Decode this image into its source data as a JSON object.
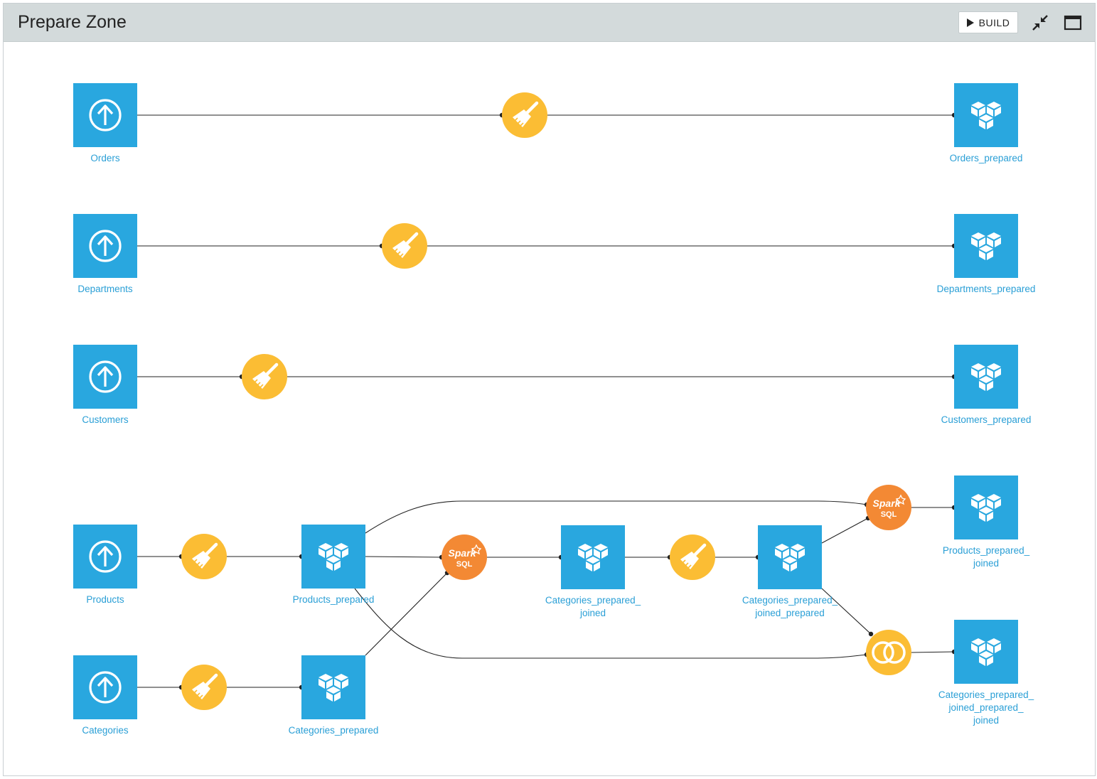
{
  "header": {
    "title": "Prepare Zone",
    "build_label": "BUILD",
    "icons": [
      "collapse-icon",
      "maximize-icon"
    ]
  },
  "colors": {
    "dataset": "#29a7df",
    "prepare_recipe": "#fbbd34",
    "spark_sql_recipe": "#f38934",
    "join_recipe": "#fbbd34",
    "edge": "#222222",
    "label": "#2a9fd6"
  },
  "nodes": [
    {
      "id": "orders",
      "type": "upload-dataset",
      "label_lines": [
        "Orders"
      ]
    },
    {
      "id": "prep1",
      "type": "prepare-recipe",
      "label_lines": []
    },
    {
      "id": "orders_prepared",
      "type": "dataset",
      "label_lines": [
        "Orders_prepared"
      ]
    },
    {
      "id": "departments",
      "type": "upload-dataset",
      "label_lines": [
        "Departments"
      ]
    },
    {
      "id": "prep2",
      "type": "prepare-recipe",
      "label_lines": []
    },
    {
      "id": "departments_prepared",
      "type": "dataset",
      "label_lines": [
        "Departments_prepared"
      ]
    },
    {
      "id": "customers",
      "type": "upload-dataset",
      "label_lines": [
        "Customers"
      ]
    },
    {
      "id": "prep3",
      "type": "prepare-recipe",
      "label_lines": []
    },
    {
      "id": "customers_prepared",
      "type": "dataset",
      "label_lines": [
        "Customers_prepared"
      ]
    },
    {
      "id": "products",
      "type": "upload-dataset",
      "label_lines": [
        "Products"
      ]
    },
    {
      "id": "prep4",
      "type": "prepare-recipe",
      "label_lines": []
    },
    {
      "id": "products_prepared",
      "type": "dataset",
      "label_lines": [
        "Products_prepared"
      ]
    },
    {
      "id": "spark1",
      "type": "spark-sql-recipe",
      "label_lines": []
    },
    {
      "id": "cat_joined",
      "type": "dataset",
      "label_lines": [
        "Categories_prepared_",
        "joined"
      ]
    },
    {
      "id": "prep5",
      "type": "prepare-recipe",
      "label_lines": []
    },
    {
      "id": "cat_joined_prepared",
      "type": "dataset",
      "label_lines": [
        "Categories_prepared_",
        "joined_prepared"
      ]
    },
    {
      "id": "spark2",
      "type": "spark-sql-recipe",
      "label_lines": []
    },
    {
      "id": "products_joined",
      "type": "dataset",
      "label_lines": [
        "Products_prepared_",
        "joined"
      ]
    },
    {
      "id": "join1",
      "type": "join-recipe",
      "label_lines": []
    },
    {
      "id": "cat_jpj",
      "type": "dataset",
      "label_lines": [
        "Categories_prepared_",
        "joined_prepared_",
        "joined"
      ]
    },
    {
      "id": "categories",
      "type": "upload-dataset",
      "label_lines": [
        "Categories"
      ]
    },
    {
      "id": "prep6",
      "type": "prepare-recipe",
      "label_lines": []
    },
    {
      "id": "categories_prepared",
      "type": "dataset",
      "label_lines": [
        "Categories_prepared"
      ]
    }
  ],
  "edges": [
    [
      "orders",
      "prep1"
    ],
    [
      "prep1",
      "orders_prepared"
    ],
    [
      "departments",
      "prep2"
    ],
    [
      "prep2",
      "departments_prepared"
    ],
    [
      "customers",
      "prep3"
    ],
    [
      "prep3",
      "customers_prepared"
    ],
    [
      "products",
      "prep4"
    ],
    [
      "prep4",
      "products_prepared"
    ],
    [
      "products_prepared",
      "spark1"
    ],
    [
      "categories_prepared",
      "spark1"
    ],
    [
      "spark1",
      "cat_joined"
    ],
    [
      "cat_joined",
      "prep5"
    ],
    [
      "prep5",
      "cat_joined_prepared"
    ],
    [
      "products_prepared",
      "spark2"
    ],
    [
      "cat_joined_prepared",
      "spark2"
    ],
    [
      "spark2",
      "products_joined"
    ],
    [
      "products_prepared",
      "join1"
    ],
    [
      "cat_joined_prepared",
      "join1"
    ],
    [
      "join1",
      "cat_jpj"
    ],
    [
      "categories",
      "prep6"
    ],
    [
      "prep6",
      "categories_prepared"
    ]
  ]
}
